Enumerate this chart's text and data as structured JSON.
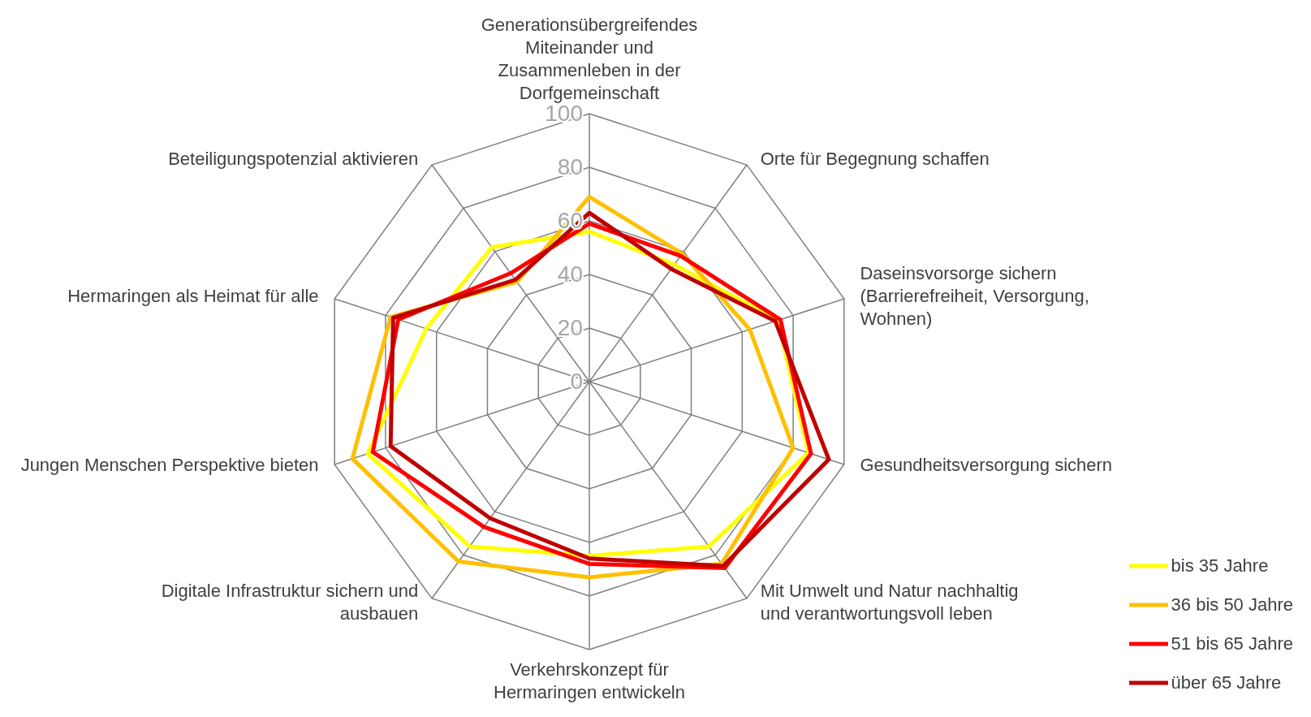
{
  "chart_data": {
    "type": "radar",
    "categories": [
      "Generationsübergreifendes Miteinander und Zusammenleben in der Dorfgemeinschaft",
      "Orte für Begegnung schaffen",
      "Daseinsvorsorge sichern (Barrierefreiheit, Versorgung, Wohnen)",
      "Gesundheitsversorgung sichern",
      "Mit Umwelt und Natur nachhaltig und verantwortungsvoll leben",
      "Verkehrskonzept für Hermaringen entwickeln",
      "Digitale Infrastruktur sichern und ausbauen",
      "Jungen Menschen Perspektive bieten",
      "Hermaringen als Heimat für alle",
      "Beteiligungspotenzial aktivieren"
    ],
    "series": [
      {
        "name": "bis 35 Jahre",
        "color": "#ffff00",
        "values": [
          56,
          54,
          74,
          86,
          76,
          65,
          76,
          87,
          64,
          62
        ]
      },
      {
        "name": "36 bis 50 Jahre",
        "color": "#ffc000",
        "values": [
          69,
          59,
          63,
          80,
          84,
          73,
          83,
          93,
          78,
          46
        ]
      },
      {
        "name": "51 bis 65 Jahre",
        "color": "#ff0000",
        "values": [
          59,
          58,
          75,
          87,
          86,
          68,
          67,
          85,
          75,
          50
        ]
      },
      {
        "name": "über 65 Jahre",
        "color": "#c00000",
        "values": [
          63,
          52,
          73,
          94,
          85,
          66,
          63,
          78,
          77,
          47
        ]
      }
    ],
    "ylim": [
      0,
      100
    ],
    "yticks": [
      0,
      20,
      40,
      60,
      80,
      100
    ],
    "grid": true,
    "legend": "bottom right"
  }
}
